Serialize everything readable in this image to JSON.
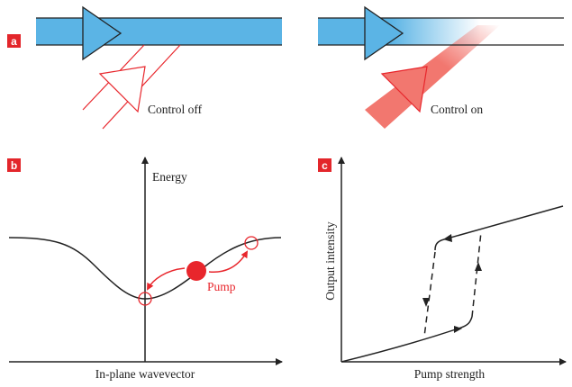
{
  "panels": {
    "a": {
      "label": "a",
      "left_caption": "Control off",
      "right_caption": "Control on"
    },
    "b": {
      "label": "b",
      "y_axis": "Energy",
      "x_axis": "In-plane wavevector",
      "pump_label": "Pump"
    },
    "c": {
      "label": "c",
      "y_axis": "Output intensity",
      "x_axis": "Pump strength"
    }
  },
  "colors": {
    "beam_blue": "#5bb4e5",
    "control_red": "#e8262c",
    "beam_red": "#f2776f",
    "label_box": "#e3262b"
  }
}
